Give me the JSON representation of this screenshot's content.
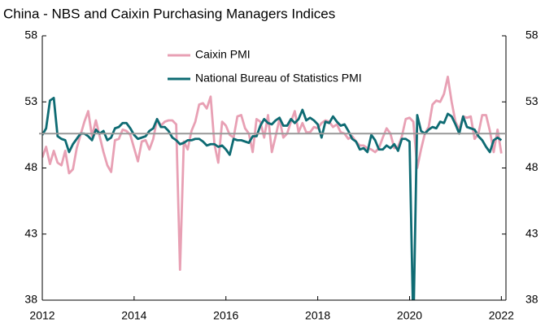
{
  "chart_data": {
    "type": "line",
    "title": "China - NBS and Caixin Purchasing Managers Indices",
    "x": [
      2012.0,
      2012.083,
      2012.167,
      2012.25,
      2012.333,
      2012.417,
      2012.5,
      2012.583,
      2012.667,
      2012.75,
      2012.833,
      2012.917,
      2013.0,
      2013.083,
      2013.167,
      2013.25,
      2013.333,
      2013.417,
      2013.5,
      2013.583,
      2013.667,
      2013.75,
      2013.833,
      2013.917,
      2014.0,
      2014.083,
      2014.167,
      2014.25,
      2014.333,
      2014.417,
      2014.5,
      2014.583,
      2014.667,
      2014.75,
      2014.833,
      2014.917,
      2015.0,
      2015.083,
      2015.167,
      2015.25,
      2015.333,
      2015.417,
      2015.5,
      2015.583,
      2015.667,
      2015.75,
      2015.833,
      2015.917,
      2016.0,
      2016.083,
      2016.167,
      2016.25,
      2016.333,
      2016.417,
      2016.5,
      2016.583,
      2016.667,
      2016.75,
      2016.833,
      2016.917,
      2017.0,
      2017.083,
      2017.167,
      2017.25,
      2017.333,
      2017.417,
      2017.5,
      2017.583,
      2017.667,
      2017.75,
      2017.833,
      2017.917,
      2018.0,
      2018.083,
      2018.167,
      2018.25,
      2018.333,
      2018.417,
      2018.5,
      2018.583,
      2018.667,
      2018.75,
      2018.833,
      2018.917,
      2019.0,
      2019.083,
      2019.167,
      2019.25,
      2019.333,
      2019.417,
      2019.5,
      2019.583,
      2019.667,
      2019.75,
      2019.833,
      2019.917,
      2020.0,
      2020.083,
      2020.167,
      2020.25,
      2020.333,
      2020.417,
      2020.5,
      2020.583,
      2020.667,
      2020.75,
      2020.833,
      2020.917,
      2021.0,
      2021.083,
      2021.167,
      2021.25,
      2021.333,
      2021.417,
      2021.5,
      2021.583,
      2021.667,
      2021.75,
      2021.833,
      2021.917,
      2022.0
    ],
    "series": [
      {
        "name": "Caixin PMI",
        "color": "#e8a0b4",
        "values": [
          48.8,
          49.6,
          48.3,
          49.3,
          48.4,
          48.2,
          49.3,
          47.6,
          47.9,
          49.5,
          50.5,
          51.5,
          52.3,
          50.4,
          51.6,
          50.4,
          49.2,
          48.2,
          47.7,
          50.1,
          50.2,
          50.9,
          50.8,
          50.5,
          49.5,
          48.5,
          50.0,
          50.1,
          49.4,
          50.2,
          51.7,
          51.2,
          51.5,
          51.6,
          51.6,
          51.3,
          40.3,
          50.0,
          49.4,
          50.8,
          51.5,
          52.8,
          52.9,
          52.5,
          53.4,
          49.8,
          48.4,
          51.5,
          51.2,
          50.5,
          50.3,
          51.9,
          52.0,
          51.0,
          50.6,
          49.2,
          51.7,
          51.5,
          50.3,
          52.0,
          49.2,
          50.4,
          51.7,
          50.3,
          50.6,
          51.5,
          52.3,
          50.7,
          51.4,
          50.7,
          50.7,
          51.1,
          51.0,
          51.4,
          51.6,
          51.5,
          51.1,
          51.3,
          50.7,
          50.6,
          50.2,
          50.4,
          50.0,
          49.7,
          49.7,
          49.5,
          49.4,
          49.2,
          49.5,
          50.3,
          51.0,
          50.6,
          49.5,
          49.6,
          50.4,
          51.7,
          51.8,
          51.5,
          48.0,
          49.4,
          50.6,
          51.1,
          52.8,
          53.1,
          53.0,
          53.6,
          54.9,
          53.0,
          51.5,
          50.9,
          51.9,
          51.8,
          51.9,
          50.2,
          50.6,
          52.0,
          52.0,
          50.8,
          49.2,
          50.9,
          49.1
        ]
      },
      {
        "name": "National Bureau of Statistics PMI",
        "color": "#0e6b73",
        "values": [
          50.5,
          51.0,
          53.1,
          53.3,
          50.4,
          50.2,
          50.1,
          49.2,
          49.8,
          50.2,
          50.6,
          50.6,
          50.4,
          50.1,
          50.9,
          50.6,
          50.8,
          50.1,
          50.3,
          51.0,
          51.1,
          51.4,
          51.4,
          51.0,
          50.5,
          50.2,
          50.3,
          50.4,
          50.8,
          51.0,
          51.7,
          51.1,
          51.1,
          50.8,
          50.3,
          50.1,
          49.8,
          49.9,
          50.1,
          50.1,
          50.2,
          50.2,
          50.0,
          49.7,
          49.8,
          49.8,
          49.6,
          49.7,
          49.4,
          49.0,
          50.2,
          50.1,
          50.1,
          50.0,
          49.9,
          50.4,
          50.4,
          51.2,
          51.7,
          51.4,
          51.3,
          51.6,
          51.8,
          51.2,
          51.2,
          51.7,
          51.4,
          51.7,
          52.4,
          51.6,
          51.8,
          51.6,
          51.3,
          50.3,
          51.5,
          51.4,
          51.9,
          51.5,
          51.2,
          51.3,
          50.8,
          50.2,
          50.0,
          49.4,
          49.5,
          49.2,
          50.5,
          50.1,
          49.4,
          49.4,
          49.7,
          49.5,
          49.8,
          49.3,
          50.2,
          50.2,
          50.0,
          35.7,
          52.0,
          50.8,
          50.6,
          50.9,
          51.1,
          51.0,
          51.5,
          51.4,
          52.1,
          51.9,
          51.3,
          50.6,
          51.9,
          51.1,
          51.0,
          50.9,
          50.4,
          50.1,
          49.6,
          49.2,
          50.1,
          50.3,
          50.1
        ]
      }
    ],
    "xlim": [
      2012,
      2022.1
    ],
    "xticks": [
      2012,
      2014,
      2016,
      2018,
      2020,
      2022
    ],
    "ylim": [
      38,
      58
    ],
    "yticks": [
      38,
      43,
      48,
      53,
      58
    ],
    "y2lim": [
      38,
      58
    ],
    "y2ticks": [
      38,
      43,
      48,
      53,
      58
    ],
    "hline": {
      "value": 50.6,
      "color": "#999999"
    }
  }
}
